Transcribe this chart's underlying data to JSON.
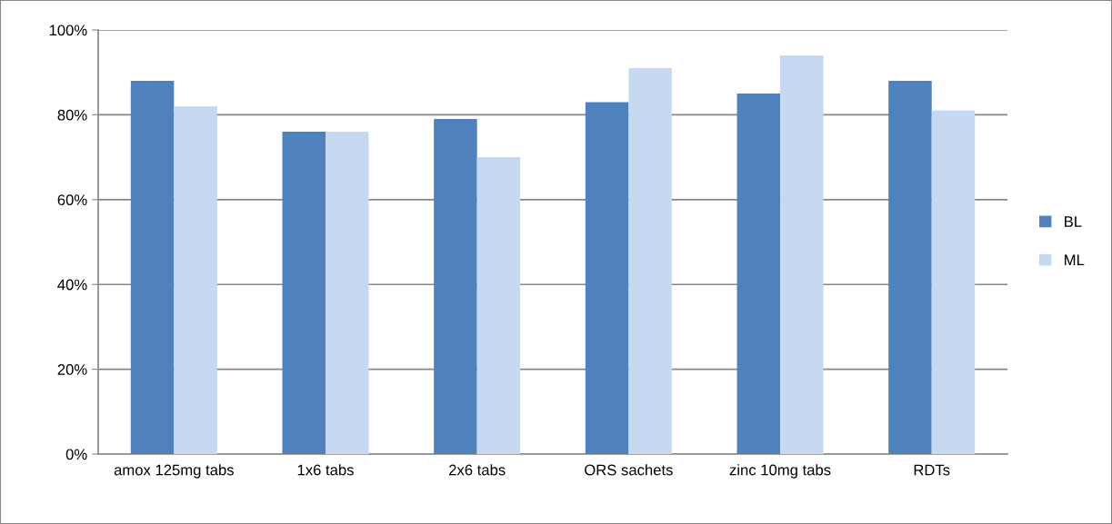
{
  "chart_data": {
    "type": "bar",
    "categories": [
      "amox 125mg tabs",
      "1x6 tabs",
      "2x6 tabs",
      "ORS sachets",
      "zinc 10mg tabs",
      "RDTs"
    ],
    "series": [
      {
        "name": "BL",
        "color": "#4f81bd",
        "values": [
          88,
          76,
          79,
          83,
          85,
          88
        ]
      },
      {
        "name": "ML",
        "color": "#c6d9f1",
        "values": [
          82,
          76,
          70,
          91,
          94,
          81
        ]
      }
    ],
    "ylim": [
      0,
      100
    ],
    "yticks": [
      {
        "value": 0,
        "label": "0%"
      },
      {
        "value": 20,
        "label": "20%"
      },
      {
        "value": 40,
        "label": "40%"
      },
      {
        "value": 60,
        "label": "60%"
      },
      {
        "value": 80,
        "label": "80%"
      },
      {
        "value": 100,
        "label": "100%"
      }
    ],
    "grid": "y",
    "legend": "right"
  }
}
